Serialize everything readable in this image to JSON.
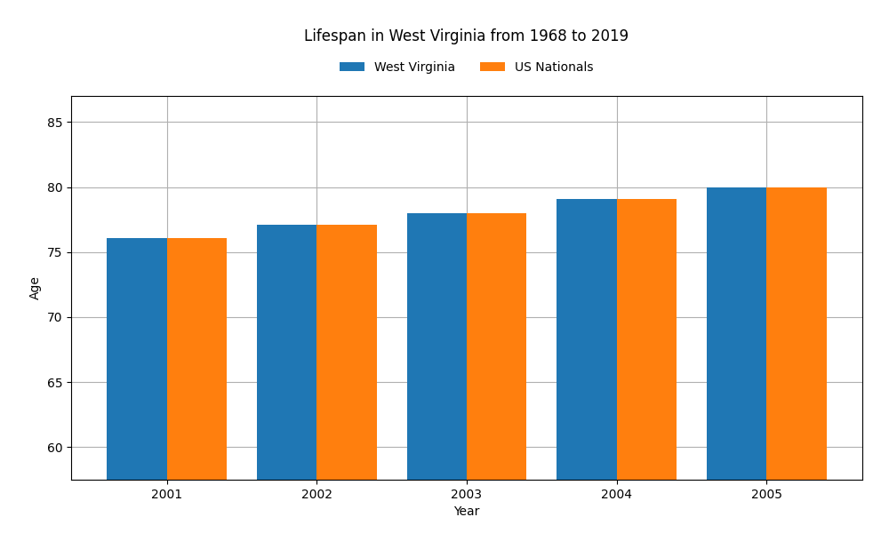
{
  "chart_data": {
    "type": "bar",
    "title": "Lifespan in West Virginia from 1968 to 2019",
    "x_label": "Year",
    "y_label": "Age",
    "categories": [
      "2001",
      "2002",
      "2003",
      "2004",
      "2005"
    ],
    "series": [
      {
        "name": "West Virginia",
        "values": [
          76.1,
          77.1,
          78.0,
          79.1,
          80.0
        ]
      },
      {
        "name": "US Nationals",
        "values": [
          76.1,
          77.1,
          78.0,
          79.1,
          80.0
        ]
      }
    ],
    "ylim": [
      57.5,
      87
    ],
    "yticks": [
      60,
      65,
      70,
      75,
      80,
      85
    ],
    "grid": true,
    "legend": "upper center"
  }
}
